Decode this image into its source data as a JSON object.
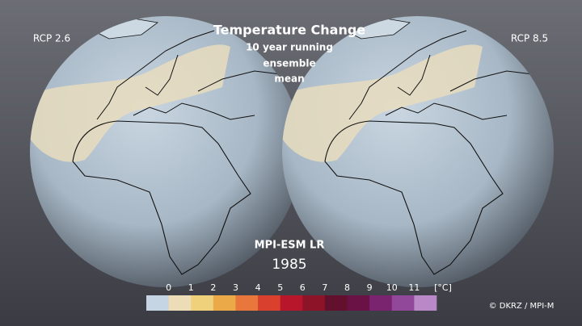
{
  "header": {
    "title": "Temperature Change",
    "subtitle": [
      "10  year running",
      "ensemble",
      "mean"
    ]
  },
  "globes": [
    {
      "label": "RCP 2.6"
    },
    {
      "label": "RCP 8.5"
    }
  ],
  "model": "MPI-ESM LR",
  "year": 1985,
  "legend": {
    "ticks": [
      0,
      1,
      2,
      3,
      4,
      5,
      6,
      7,
      8,
      9,
      10,
      11
    ],
    "unit": "[°C]",
    "colors": [
      "#c5d5e4",
      "#ecdcb8",
      "#eed17a",
      "#eba948",
      "#e7773a",
      "#d9412e",
      "#b8162a",
      "#8c1328",
      "#62102e",
      "#6a1245",
      "#7a2470",
      "#91489a",
      "#b889c6"
    ]
  },
  "credit": "© DKRZ / MPI-M"
}
